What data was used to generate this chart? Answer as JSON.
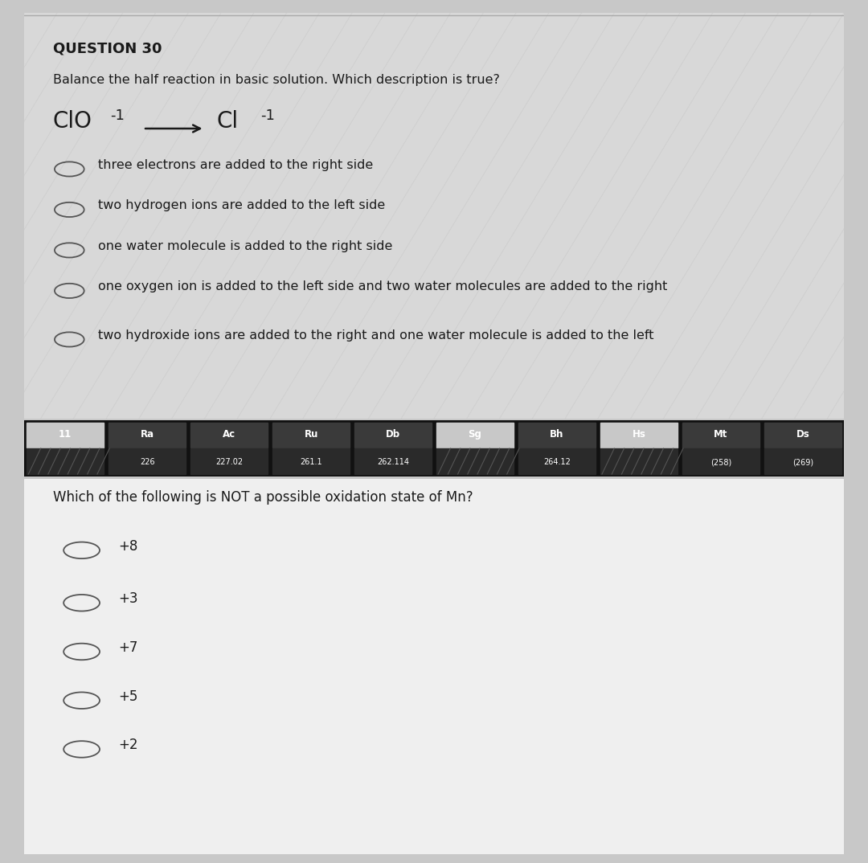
{
  "bg_color_outer": "#c8c8c8",
  "bg_color_top": "#d8d8d8",
  "bg_color_bottom": "#efefef",
  "q30_title": "QUESTION 30",
  "q30_instruction": "Balance the half reaction in basic solution. Which description is true?",
  "q30_options": [
    "three electrons are added to the right side",
    "two hydrogen ions are added to the left side",
    "one water molecule is added to the right side",
    "one oxygen ion is added to the left side and two water molecules are added to the right",
    "two hydroxide ions are added to the right and one water molecule is added to the left"
  ],
  "periodic_top_labels": [
    "11",
    "Ra",
    "Ac",
    "Ru",
    "Db",
    "Sg",
    "Bh",
    "Hs",
    "Mt",
    "Ds"
  ],
  "periodic_bot_values": [
    "",
    "226",
    "227.02",
    "261.1",
    "262.114",
    "",
    "264.12",
    "",
    "(258)",
    "(269)"
  ],
  "periodic_top_colors": [
    "#c8c8c8",
    "#3a3a3a",
    "#3a3a3a",
    "#3a3a3a",
    "#3a3a3a",
    "#c8c8c8",
    "#3a3a3a",
    "#c8c8c8",
    "#3a3a3a",
    "#3a3a3a"
  ],
  "q31_question": "Which of the following is NOT a possible oxidation state of Mn?",
  "q31_options": [
    "+8",
    "+3",
    "+7",
    "+5",
    "+2"
  ],
  "text_color": "#1a1a1a",
  "circle_color": "#555555"
}
